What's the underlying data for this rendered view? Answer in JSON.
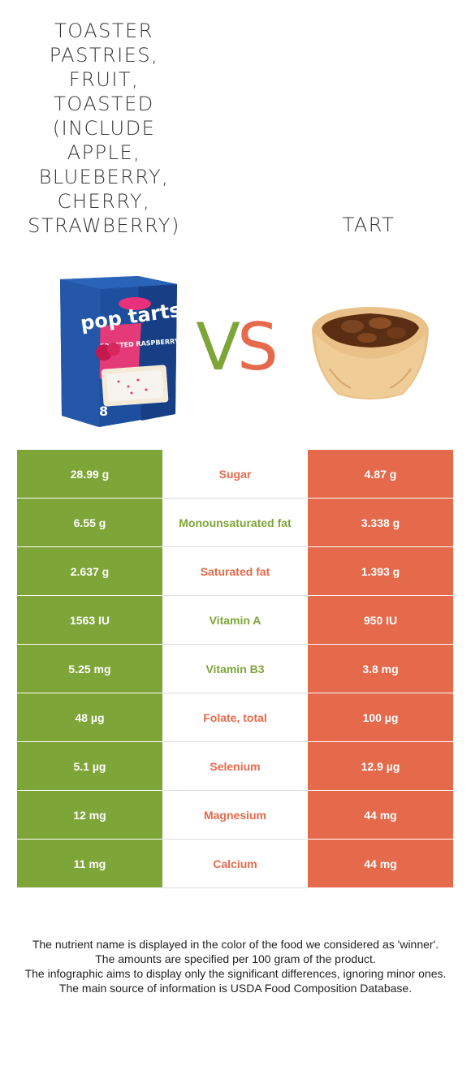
{
  "left_food": {
    "title_lines": [
      "TOASTER",
      "PASTRIES,",
      "FRUIT,",
      "TOASTED",
      "(INCLUDE",
      "APPLE,",
      "BLUEBERRY,",
      "CHERRY,",
      "STRAWBERRY)"
    ],
    "box_brand": "pop tarts",
    "box_flavor": "FROSTED RASPBERRY",
    "box_count": "8",
    "color": "#7da537"
  },
  "right_food": {
    "title": "TART",
    "color": "#e46a4b"
  },
  "vs": {
    "v": "V",
    "s": "S"
  },
  "rows": [
    {
      "left": "28.99 g",
      "nutrient": "Sugar",
      "right": "4.87 g",
      "winner": "right"
    },
    {
      "left": "6.55 g",
      "nutrient": "Monounsaturated fat",
      "right": "3.338 g",
      "winner": "left"
    },
    {
      "left": "2.637 g",
      "nutrient": "Saturated fat",
      "right": "1.393 g",
      "winner": "right"
    },
    {
      "left": "1563 IU",
      "nutrient": "Vitamin A",
      "right": "950 IU",
      "winner": "left"
    },
    {
      "left": "5.25 mg",
      "nutrient": "Vitamin B3",
      "right": "3.8 mg",
      "winner": "left"
    },
    {
      "left": "48 µg",
      "nutrient": "Folate, total",
      "right": "100 µg",
      "winner": "right"
    },
    {
      "left": "5.1 µg",
      "nutrient": "Selenium",
      "right": "12.9 µg",
      "winner": "right"
    },
    {
      "left": "12 mg",
      "nutrient": "Magnesium",
      "right": "44 mg",
      "winner": "right"
    },
    {
      "left": "11 mg",
      "nutrient": "Calcium",
      "right": "44 mg",
      "winner": "right"
    }
  ],
  "footer": [
    "The nutrient name is displayed in the color of the food we considered as 'winner'.",
    "The amounts are specified per 100 gram of the product.",
    "The infographic aims to display only the significant differences, ignoring minor ones.",
    "The main source of information is USDA Food Composition Database."
  ]
}
